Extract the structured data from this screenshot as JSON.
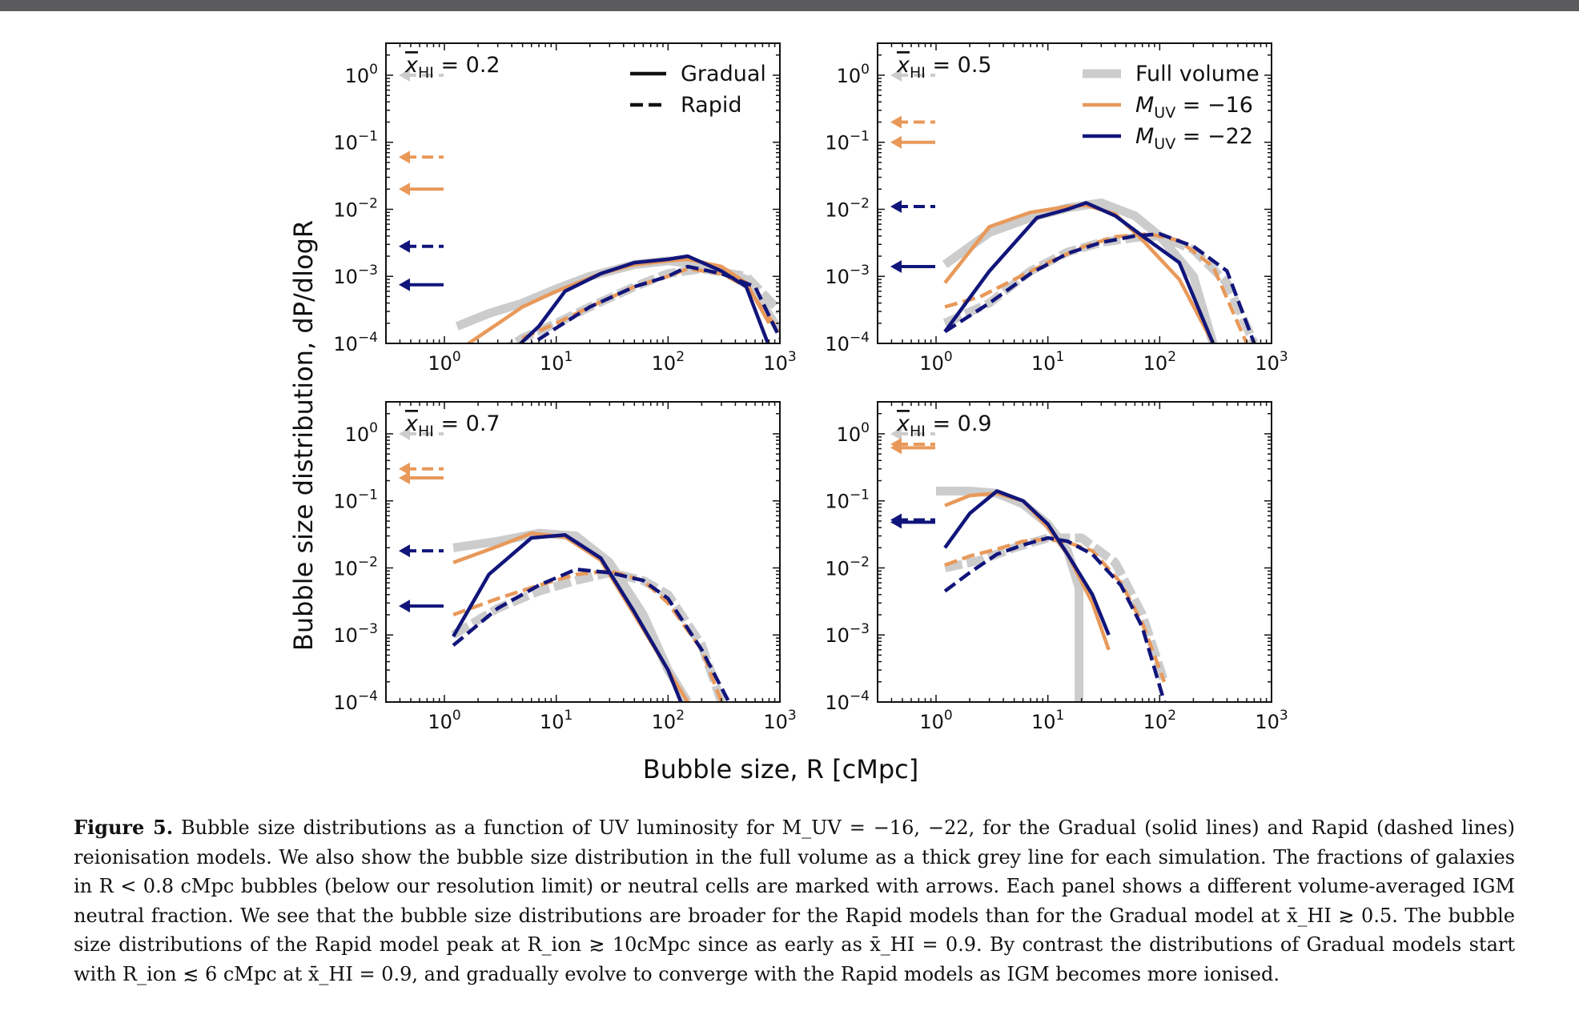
{
  "chart_data": {
    "type": "line",
    "xscale": "log",
    "yscale": "log",
    "xlim": [
      0.3,
      1000
    ],
    "ylim": [
      0.0001,
      3
    ],
    "xlabel": "Bubble size, R [cMpc]",
    "ylabel": "Bubble size distribution, dP/dlogR",
    "legend": {
      "styles": [
        {
          "label": "Gradual",
          "linestyle": "solid"
        },
        {
          "label": "Rapid",
          "linestyle": "dashed"
        }
      ],
      "colors": [
        {
          "label": "Full volume",
          "color": "#cccccc"
        },
        {
          "label": "M_UV = −16",
          "color": "#e8995a"
        },
        {
          "label": "M_UV = −22",
          "color": "#11157a"
        }
      ]
    },
    "colors": {
      "full": "#cccccc",
      "faint": "#e8995a",
      "bright": "#11157a"
    },
    "panels": [
      {
        "title": "x_HI = 0.2",
        "series": [
          {
            "name": "Full volume Gradual",
            "x": [
              1.3,
              2.5,
              5,
              10,
              20,
              50,
              100,
              200,
              500,
              1000
            ],
            "y": [
              0.00018,
              0.00028,
              0.0004,
              0.00065,
              0.001,
              0.0015,
              0.0017,
              0.0015,
              0.0009,
              0.00015
            ]
          },
          {
            "name": "Full volume Rapid",
            "x": [
              3,
              5,
              10,
              20,
              50,
              100,
              200,
              500,
              1000
            ],
            "y": [
              7e-05,
              0.00012,
              0.0002,
              0.00035,
              0.0007,
              0.0011,
              0.0013,
              0.001,
              0.0003
            ]
          },
          {
            "name": "M_UV = −16 Gradual",
            "x": [
              1.5,
              2.5,
              5,
              10,
              25,
              50,
              100,
              150,
              300,
              500,
              800
            ],
            "y": [
              9e-05,
              0.00016,
              0.00035,
              0.0006,
              0.0011,
              0.0015,
              0.0017,
              0.0018,
              0.0014,
              0.0008,
              0.0002
            ]
          },
          {
            "name": "M_UV = −16 Rapid",
            "x": [
              5,
              10,
              20,
              50,
              100,
              150,
              300,
              500,
              1000
            ],
            "y": [
              0.00012,
              0.0002,
              0.00035,
              0.0007,
              0.001,
              0.0013,
              0.0011,
              0.0007,
              0.00015
            ]
          },
          {
            "name": "M_UV = −22 Gradual",
            "x": [
              4.5,
              7,
              12,
              25,
              50,
              100,
              150,
              300,
              500,
              800
            ],
            "y": [
              9e-05,
              0.00018,
              0.0006,
              0.0011,
              0.0016,
              0.0018,
              0.002,
              0.0012,
              0.0007,
              9e-05
            ]
          },
          {
            "name": "M_UV = −22 Rapid",
            "x": [
              5,
              10,
              20,
              50,
              100,
              150,
              300,
              600,
              1000
            ],
            "y": [
              8e-05,
              0.00017,
              0.00035,
              0.0007,
              0.001,
              0.0014,
              0.0011,
              0.0007,
              0.00012
            ]
          }
        ],
        "arrows": [
          {
            "group": "full",
            "style": "dashed",
            "value": 1.0
          },
          {
            "group": "faint",
            "style": "dashed",
            "value": 0.06
          },
          {
            "group": "faint",
            "style": "solid",
            "value": 0.02
          },
          {
            "group": "bright",
            "style": "dashed",
            "value": 0.0028
          },
          {
            "group": "bright",
            "style": "solid",
            "value": 0.00075
          }
        ]
      },
      {
        "title": "x_HI = 0.5",
        "series": [
          {
            "name": "Full volume Gradual",
            "x": [
              1.2,
              3,
              7,
              15,
              30,
              60,
              100,
              200,
              300
            ],
            "y": [
              0.0015,
              0.0045,
              0.0075,
              0.0105,
              0.0125,
              0.008,
              0.004,
              0.001,
              0.0001
            ]
          },
          {
            "name": "Full volume Rapid",
            "x": [
              1.2,
              3,
              7,
              15,
              30,
              60,
              100,
              200,
              400,
              700
            ],
            "y": [
              0.0002,
              0.0004,
              0.0012,
              0.0023,
              0.0032,
              0.0038,
              0.004,
              0.0025,
              0.0008,
              0.0001
            ]
          },
          {
            "name": "M_UV = −16 Gradual",
            "x": [
              1.2,
              3,
              7,
              15,
              22,
              40,
              70,
              150,
              300
            ],
            "y": [
              0.0008,
              0.0055,
              0.009,
              0.011,
              0.0115,
              0.0085,
              0.0035,
              0.0009,
              0.0001
            ]
          },
          {
            "name": "M_UV = −16 Rapid",
            "x": [
              1.2,
              2.5,
              5,
              10,
              20,
              40,
              80,
              150,
              300,
              600
            ],
            "y": [
              0.00035,
              0.0005,
              0.0009,
              0.0016,
              0.0027,
              0.0039,
              0.0043,
              0.0034,
              0.0014,
              0.0001
            ]
          },
          {
            "name": "M_UV = −22 Gradual",
            "x": [
              1.2,
              3,
              8,
              15,
              22,
              40,
              70,
              150,
              300
            ],
            "y": [
              0.00015,
              0.0012,
              0.0075,
              0.01,
              0.0125,
              0.008,
              0.004,
              0.0016,
              0.0001
            ]
          },
          {
            "name": "M_UV = −22 Rapid",
            "x": [
              1.2,
              3,
              7,
              15,
              30,
              60,
              100,
              200,
              400,
              700
            ],
            "y": [
              0.00015,
              0.0004,
              0.0011,
              0.0022,
              0.0032,
              0.004,
              0.0043,
              0.0028,
              0.0012,
              0.0001
            ]
          }
        ],
        "arrows": [
          {
            "group": "full",
            "style": "dashed",
            "value": 1.0
          },
          {
            "group": "faint",
            "style": "dashed",
            "value": 0.2
          },
          {
            "group": "faint",
            "style": "solid",
            "value": 0.1
          },
          {
            "group": "bright",
            "style": "dashed",
            "value": 0.011
          },
          {
            "group": "bright",
            "style": "solid",
            "value": 0.0014
          }
        ]
      },
      {
        "title": "x_HI = 0.7",
        "series": [
          {
            "name": "Full volume Gradual",
            "x": [
              1.2,
              3,
              7,
              15,
              30,
              60,
              100,
              150
            ],
            "y": [
              0.02,
              0.025,
              0.033,
              0.03,
              0.012,
              0.002,
              0.0003,
              0.0001
            ]
          },
          {
            "name": "Full volume Rapid",
            "x": [
              1.2,
              3,
              7,
              15,
              30,
              60,
              100,
              200,
              300
            ],
            "y": [
              0.001,
              0.0025,
              0.0045,
              0.0065,
              0.0085,
              0.0065,
              0.004,
              0.0007,
              0.0001
            ]
          },
          {
            "name": "M_UV = −16 Gradual",
            "x": [
              1.2,
              3,
              6,
              12,
              25,
              50,
              100,
              150
            ],
            "y": [
              0.012,
              0.021,
              0.033,
              0.029,
              0.013,
              0.002,
              0.0003,
              0.0001
            ]
          },
          {
            "name": "M_UV = −16 Rapid",
            "x": [
              1.2,
              3,
              7,
              15,
              30,
              60,
              100,
              200,
              300
            ],
            "y": [
              0.002,
              0.0035,
              0.0055,
              0.008,
              0.009,
              0.0065,
              0.003,
              0.0006,
              0.0001
            ]
          },
          {
            "name": "M_UV = −22 Gradual",
            "x": [
              1.2,
              2.5,
              6,
              12,
              25,
              50,
              100,
              130
            ],
            "y": [
              0.00095,
              0.008,
              0.028,
              0.031,
              0.014,
              0.0022,
              0.0003,
              0.0001
            ]
          },
          {
            "name": "M_UV = −22 Rapid",
            "x": [
              1.2,
              3,
              7,
              15,
              30,
              60,
              100,
              200,
              350
            ],
            "y": [
              0.0007,
              0.0025,
              0.0055,
              0.0095,
              0.0085,
              0.0065,
              0.0035,
              0.0006,
              0.0001
            ]
          }
        ],
        "arrows": [
          {
            "group": "full",
            "style": "dashed",
            "value": 1.0
          },
          {
            "group": "faint",
            "style": "dashed",
            "value": 0.3
          },
          {
            "group": "faint",
            "style": "solid",
            "value": 0.22
          },
          {
            "group": "bright",
            "style": "dashed",
            "value": 0.018
          },
          {
            "group": "bright",
            "style": "solid",
            "value": 0.0027
          }
        ]
      },
      {
        "title": "x_HI = 0.9",
        "series": [
          {
            "name": "Full volume Gradual",
            "x": [
              1.0,
              2.0,
              3.5,
              6,
              10,
              15,
              19,
              19,
              19
            ],
            "y": [
              0.14,
              0.14,
              0.13,
              0.09,
              0.045,
              0.018,
              0.005,
              0.001,
              0.0001
            ]
          },
          {
            "name": "Full volume Rapid",
            "x": [
              1.2,
              2.5,
              5,
              10,
              20,
              40,
              70,
              110
            ],
            "y": [
              0.01,
              0.013,
              0.02,
              0.028,
              0.028,
              0.012,
              0.002,
              0.0002
            ]
          },
          {
            "name": "M_UV = −16 Gradual",
            "x": [
              1.2,
              2,
              3.5,
              6,
              10,
              15,
              25,
              35
            ],
            "y": [
              0.085,
              0.12,
              0.13,
              0.1,
              0.04,
              0.016,
              0.003,
              0.0006
            ]
          },
          {
            "name": "M_UV = −16 Rapid",
            "x": [
              1.2,
              2,
              3.5,
              6,
              10,
              15,
              25,
              45,
              70,
              110
            ],
            "y": [
              0.011,
              0.015,
              0.019,
              0.025,
              0.027,
              0.024,
              0.018,
              0.006,
              0.0015,
              0.0002
            ]
          },
          {
            "name": "M_UV = −22 Gradual",
            "x": [
              1.2,
              2,
              3.5,
              6,
              10,
              15,
              25,
              35
            ],
            "y": [
              0.02,
              0.065,
              0.14,
              0.1,
              0.045,
              0.016,
              0.004,
              0.001
            ]
          },
          {
            "name": "M_UV = −22 Rapid",
            "x": [
              1.2,
              2,
              3.5,
              6,
              10,
              15,
              25,
              45,
              70,
              110
            ],
            "y": [
              0.0045,
              0.0085,
              0.016,
              0.022,
              0.028,
              0.025,
              0.016,
              0.0055,
              0.0013,
              0.0001
            ]
          }
        ],
        "arrows": [
          {
            "group": "full",
            "style": "dashed",
            "value": 1.0
          },
          {
            "group": "faint",
            "style": "dashed",
            "value": 0.7
          },
          {
            "group": "faint",
            "style": "solid",
            "value": 0.62
          },
          {
            "group": "bright",
            "style": "dashed",
            "value": 0.052
          },
          {
            "group": "bright",
            "style": "solid",
            "value": 0.048
          }
        ]
      }
    ]
  },
  "caption": {
    "label": "Figure 5.",
    "text": "Bubble size distributions as a function of UV luminosity for M_UV = −16, −22, for the Gradual (solid lines) and Rapid (dashed lines) reionisation models. We also show the bubble size distribution in the full volume as a thick grey line for each simulation. The fractions of galaxies in R < 0.8 cMpc bubbles (below our resolution limit) or neutral cells are marked with arrows. Each panel shows a different volume-averaged IGM neutral fraction. We see that the bubble size distributions are broader for the Rapid models than for the Gradual model at x̄_HI ≳ 0.5. The bubble size distributions of the Rapid model peak at R_ion ≳ 10cMpc since as early as x̄_HI = 0.9. By contrast the distributions of Gradual models start with R_ion ≲ 6 cMpc at x̄_HI = 0.9, and gradually evolve to converge with the Rapid models as IGM becomes more ionised."
  }
}
